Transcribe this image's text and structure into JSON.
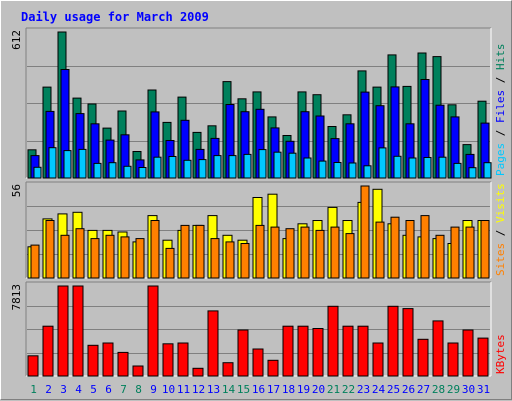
{
  "chart_data": {
    "type": "bar",
    "title": "Daily usage for March 2009",
    "colors": {
      "background": "#c0c0c0",
      "title": "#0000ff",
      "hits": "#00805c",
      "files": "#0000ff",
      "pages": "#00c8ff",
      "visits": "#ffff00",
      "sites": "#ff8000",
      "kbytes": "#ff0000",
      "grid": "#808080",
      "day_weekday": "#0000ff",
      "day_weekend": "#00805c"
    },
    "categories": [
      "1",
      "2",
      "3",
      "4",
      "5",
      "6",
      "7",
      "8",
      "9",
      "10",
      "11",
      "12",
      "13",
      "14",
      "15",
      "16",
      "17",
      "18",
      "19",
      "20",
      "21",
      "22",
      "23",
      "24",
      "25",
      "26",
      "27",
      "28",
      "29",
      "30",
      "31"
    ],
    "weekend_days": [
      "1",
      "7",
      "8",
      "14",
      "15",
      "21",
      "22",
      "28",
      "29"
    ],
    "panels": [
      {
        "id": "hits-files-pages",
        "max_label": "612",
        "ylim": [
          0,
          612
        ],
        "label_parts": [
          {
            "text": "Pages",
            "color": "#00c8ff"
          },
          {
            "text": " / ",
            "color": "#000000"
          },
          {
            "text": "Files",
            "color": "#0000ff"
          },
          {
            "text": " / ",
            "color": "#000000"
          },
          {
            "text": "Hits",
            "color": "#00805c"
          }
        ],
        "series": [
          {
            "name": "Hits",
            "values": [
              118,
              381,
              612,
              335,
              310,
              209,
              281,
              111,
              369,
              233,
              339,
              191,
              219,
              404,
              332,
              361,
              256,
              178,
              361,
              349,
              216,
              265,
              449,
              381,
              516,
              384,
              524,
              509,
              307,
              140,
              322
            ]
          },
          {
            "name": "Files",
            "values": [
              94,
              279,
              455,
              270,
              227,
              159,
              181,
              76,
              277,
              157,
              242,
              120,
              166,
              308,
              278,
              288,
              210,
              154,
              278,
              260,
              165,
              227,
              360,
              303,
              382,
              227,
              413,
              305,
              256,
              99,
              230
            ]
          },
          {
            "name": "Pages",
            "values": [
              45,
              127,
              115,
              120,
              61,
              64,
              49,
              44,
              87,
              90,
              74,
              77,
              94,
              94,
              99,
              119,
              108,
              104,
              84,
              71,
              65,
              63,
              51,
              126,
              91,
              84,
              86,
              87,
              61,
              43,
              64
            ]
          }
        ]
      },
      {
        "id": "visits-sites",
        "max_label": "56",
        "ylim": [
          0,
          56
        ],
        "label_parts": [
          {
            "text": "Sites",
            "color": "#ff8000"
          },
          {
            "text": " / ",
            "color": "#000000"
          },
          {
            "text": "Visits",
            "color": "#ffff00"
          }
        ],
        "series": [
          {
            "name": "Visits",
            "values": [
              19,
              36,
              39,
              40,
              29,
              29,
              28,
              22,
              38,
              23,
              29,
              32,
              38,
              26,
              23,
              49,
              51,
              24,
              33,
              35,
              43,
              35,
              46,
              54,
              33,
              26,
              25,
              24,
              21,
              35,
              35
            ]
          },
          {
            "name": "Sites",
            "values": [
              20,
              35,
              26,
              30,
              24,
              26,
              25,
              24,
              35,
              18,
              32,
              32,
              24,
              22,
              21,
              32,
              31,
              30,
              31,
              29,
              31,
              27,
              56,
              34,
              37,
              35,
              38,
              26,
              31,
              31,
              35
            ]
          }
        ]
      },
      {
        "id": "kbytes",
        "max_label": "7813",
        "ylim": [
          0,
          7813
        ],
        "label_parts": [
          {
            "text": "KBytes",
            "color": "#ff0000"
          }
        ],
        "series": [
          {
            "name": "KBytes",
            "values": [
              1753,
              4327,
              7813,
              7813,
              2664,
              2868,
              2048,
              866,
              7813,
              2799,
              2868,
              666,
              5651,
              1153,
              3991,
              2348,
              1359,
              4327,
              4327,
              4125,
              6047,
              4327,
              4327,
              2868,
              6047,
              5851,
              3183,
              4787,
              2868,
              3991,
              3287
            ]
          }
        ]
      }
    ]
  }
}
